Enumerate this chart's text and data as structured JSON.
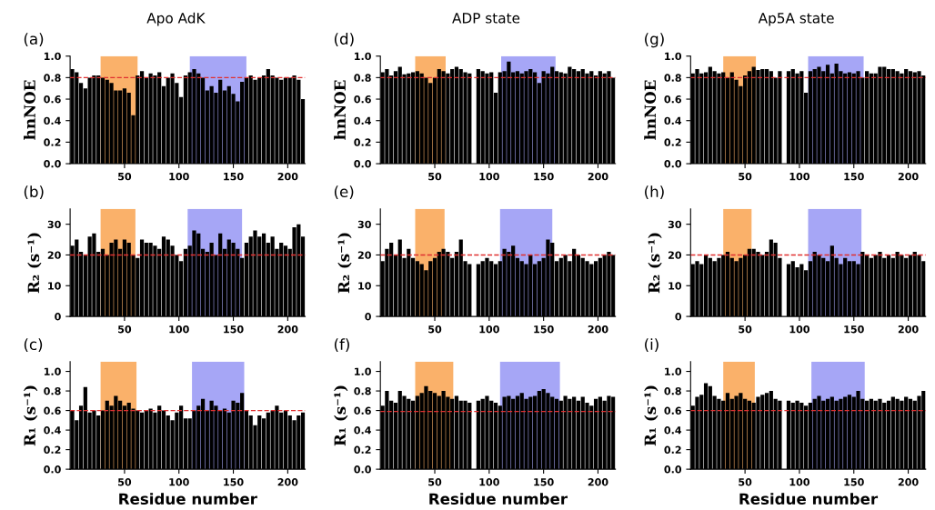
{
  "chart_data": [
    {
      "type": "bar",
      "title": "Apo AdK",
      "annotations": [
        "(a)"
      ],
      "ylabel": "hnNOE",
      "x": [
        2,
        6,
        10,
        14,
        18,
        22,
        26,
        30,
        34,
        38,
        42,
        46,
        50,
        54,
        58,
        62,
        66,
        70,
        74,
        78,
        82,
        86,
        90,
        94,
        98,
        102,
        106,
        110,
        114,
        118,
        122,
        126,
        130,
        134,
        138,
        142,
        146,
        150,
        154,
        158,
        162,
        166,
        170,
        174,
        178,
        182,
        186,
        190,
        194,
        198,
        202,
        206,
        210,
        214
      ],
      "color": "#000000",
      "values": [
        0.88,
        0.85,
        0.75,
        0.7,
        0.8,
        0.82,
        0.82,
        0.8,
        0.78,
        0.75,
        0.68,
        0.68,
        0.7,
        0.66,
        0.45,
        0.82,
        0.86,
        0.8,
        0.84,
        0.82,
        0.85,
        0.72,
        0.8,
        0.84,
        0.75,
        0.62,
        0.82,
        0.85,
        0.88,
        0.84,
        0.8,
        0.68,
        0.72,
        0.66,
        0.78,
        0.68,
        0.72,
        0.65,
        0.58,
        0.76,
        0.8,
        0.82,
        0.78,
        0.8,
        0.82,
        0.88,
        0.82,
        0.8,
        0.78,
        0.8,
        0.8,
        0.82,
        0.78,
        0.6
      ],
      "xlim": [
        0,
        216
      ],
      "xticks": [
        50,
        100,
        150,
        200
      ],
      "ylim": [
        0,
        1.0
      ],
      "yticks": [
        {
          "value": 0,
          "label": "0.0"
        },
        {
          "value": 0.2,
          "label": "0.2"
        },
        {
          "value": 0.4,
          "label": "0.4"
        },
        {
          "value": 0.6,
          "label": "0.6"
        },
        {
          "value": 0.8,
          "label": "0.8"
        },
        {
          "value": 1.0,
          "label": "1.0"
        }
      ],
      "ref_lines": [
        {
          "axis": "y",
          "value": 0.8,
          "color": "#e03030",
          "line_style": "dashed"
        }
      ],
      "bands": [
        {
          "axis": "x",
          "from": 28,
          "to": 62,
          "color": "#f9a95a"
        },
        {
          "axis": "x",
          "from": 110,
          "to": 162,
          "color": "#9c9cf5"
        }
      ]
    },
    {
      "type": "bar",
      "title": "ADP state",
      "annotations": [
        "(d)"
      ],
      "ylabel": "hnNOE",
      "x": [
        2,
        6,
        10,
        14,
        18,
        22,
        26,
        30,
        34,
        38,
        42,
        46,
        50,
        54,
        58,
        62,
        66,
        70,
        74,
        78,
        82,
        86,
        90,
        94,
        98,
        102,
        106,
        110,
        114,
        118,
        122,
        126,
        130,
        134,
        138,
        142,
        146,
        150,
        154,
        158,
        162,
        166,
        170,
        174,
        178,
        182,
        186,
        190,
        194,
        198,
        202,
        206,
        210,
        214
      ],
      "color": "#000000",
      "values": [
        0.85,
        0.88,
        0.82,
        0.86,
        0.9,
        0.83,
        0.84,
        0.85,
        0.86,
        0.84,
        0.8,
        0.75,
        0.8,
        0.88,
        0.86,
        0.84,
        0.88,
        0.9,
        0.88,
        0.85,
        0.84,
        null,
        0.88,
        0.86,
        0.84,
        0.85,
        0.66,
        0.85,
        0.86,
        0.95,
        0.85,
        0.86,
        0.84,
        0.86,
        0.88,
        0.85,
        0.75,
        0.86,
        0.84,
        0.9,
        0.86,
        0.85,
        0.84,
        0.9,
        0.88,
        0.86,
        0.88,
        0.84,
        0.86,
        0.82,
        0.86,
        0.84,
        0.86,
        0.8
      ],
      "xlim": [
        0,
        216
      ],
      "xticks": [
        50,
        100,
        150,
        200
      ],
      "ylim": [
        0,
        1.0
      ],
      "yticks": [
        {
          "value": 0,
          "label": "0.0"
        },
        {
          "value": 0.2,
          "label": "0.2"
        },
        {
          "value": 0.4,
          "label": "0.4"
        },
        {
          "value": 0.6,
          "label": "0.6"
        },
        {
          "value": 0.8,
          "label": "0.8"
        },
        {
          "value": 1.0,
          "label": "1.0"
        }
      ],
      "ref_lines": [
        {
          "axis": "y",
          "value": 0.8,
          "color": "#e03030",
          "line_style": "dashed"
        }
      ],
      "bands": [
        {
          "axis": "x",
          "from": 32,
          "to": 60,
          "color": "#f9a95a"
        },
        {
          "axis": "x",
          "from": 111,
          "to": 161,
          "color": "#9c9cf5"
        }
      ]
    },
    {
      "type": "bar",
      "title": "Ap5A state",
      "annotations": [
        "(g)"
      ],
      "ylabel": "hnNOE",
      "x": [
        2,
        6,
        10,
        14,
        18,
        22,
        26,
        30,
        34,
        38,
        42,
        46,
        50,
        54,
        58,
        62,
        66,
        70,
        74,
        78,
        82,
        86,
        90,
        94,
        98,
        102,
        106,
        110,
        114,
        118,
        122,
        126,
        130,
        134,
        138,
        142,
        146,
        150,
        154,
        158,
        162,
        166,
        170,
        174,
        178,
        182,
        186,
        190,
        194,
        198,
        202,
        206,
        210,
        214
      ],
      "color": "#000000",
      "values": [
        0.84,
        0.88,
        0.84,
        0.85,
        0.9,
        0.86,
        0.84,
        0.85,
        0.8,
        0.85,
        0.78,
        0.72,
        0.82,
        0.86,
        0.9,
        0.87,
        0.88,
        0.88,
        0.86,
        0.8,
        0.86,
        null,
        0.86,
        0.88,
        0.84,
        0.86,
        0.66,
        0.86,
        0.88,
        0.9,
        0.86,
        0.92,
        0.84,
        0.93,
        0.86,
        0.84,
        0.85,
        0.84,
        0.86,
        0.8,
        0.86,
        0.84,
        0.84,
        0.9,
        0.9,
        0.88,
        0.88,
        0.86,
        0.84,
        0.88,
        0.86,
        0.85,
        0.86,
        0.82
      ],
      "xlim": [
        0,
        216
      ],
      "xticks": [
        50,
        100,
        150,
        200
      ],
      "ylim": [
        0,
        1.0
      ],
      "yticks": [
        {
          "value": 0,
          "label": "0.0"
        },
        {
          "value": 0.2,
          "label": "0.2"
        },
        {
          "value": 0.4,
          "label": "0.4"
        },
        {
          "value": 0.6,
          "label": "0.6"
        },
        {
          "value": 0.8,
          "label": "0.8"
        },
        {
          "value": 1.0,
          "label": "1.0"
        }
      ],
      "ref_lines": [
        {
          "axis": "y",
          "value": 0.8,
          "color": "#e03030",
          "line_style": "dashed"
        }
      ],
      "bands": [
        {
          "axis": "x",
          "from": 30,
          "to": 60,
          "color": "#f9a95a"
        },
        {
          "axis": "x",
          "from": 108,
          "to": 159,
          "color": "#9c9cf5"
        }
      ]
    },
    {
      "type": "bar",
      "annotations": [
        "(b)"
      ],
      "ylabel": "R₂ (s⁻¹)",
      "x": [
        2,
        6,
        10,
        14,
        18,
        22,
        26,
        30,
        34,
        38,
        42,
        46,
        50,
        54,
        58,
        62,
        66,
        70,
        74,
        78,
        82,
        86,
        90,
        94,
        98,
        102,
        106,
        110,
        114,
        118,
        122,
        126,
        130,
        134,
        138,
        142,
        146,
        150,
        154,
        158,
        162,
        166,
        170,
        174,
        178,
        182,
        186,
        190,
        194,
        198,
        202,
        206,
        210,
        214
      ],
      "color": "#000000",
      "values": [
        23,
        25,
        21,
        20,
        26,
        27,
        21,
        22,
        20,
        24,
        25,
        22,
        25,
        24,
        20,
        19,
        25,
        24,
        24,
        23,
        22,
        26,
        25,
        23,
        20,
        18,
        22,
        23,
        28,
        27,
        22,
        21,
        24,
        20,
        27,
        22,
        25,
        24,
        22,
        19,
        24,
        26,
        28,
        26,
        27,
        24,
        26,
        22,
        24,
        23,
        22,
        29,
        30,
        26
      ],
      "xlim": [
        0,
        216
      ],
      "xticks": [
        50,
        100,
        150,
        200
      ],
      "ylim": [
        0,
        35
      ],
      "yticks": [
        0,
        10,
        20,
        30
      ],
      "ref_lines": [
        {
          "axis": "y",
          "value": 20,
          "color": "#e03030",
          "line_style": "dashed"
        }
      ],
      "bands": [
        {
          "axis": "x",
          "from": 28,
          "to": 60,
          "color": "#f9a95a"
        },
        {
          "axis": "x",
          "from": 108,
          "to": 158,
          "color": "#9c9cf5"
        }
      ]
    },
    {
      "type": "bar",
      "annotations": [
        "(e)"
      ],
      "ylabel": "R₂ (s⁻¹)",
      "x": [
        2,
        6,
        10,
        14,
        18,
        22,
        26,
        30,
        34,
        38,
        42,
        46,
        50,
        54,
        58,
        62,
        66,
        70,
        74,
        78,
        82,
        86,
        90,
        94,
        98,
        102,
        106,
        110,
        114,
        118,
        122,
        126,
        130,
        134,
        138,
        142,
        146,
        150,
        154,
        158,
        162,
        166,
        170,
        174,
        178,
        182,
        186,
        190,
        194,
        198,
        202,
        206,
        210,
        214
      ],
      "color": "#000000",
      "values": [
        18,
        22,
        24,
        20,
        25,
        19,
        22,
        19,
        18,
        17,
        15,
        18,
        19,
        21,
        22,
        21,
        19,
        21,
        25,
        18,
        17,
        null,
        17,
        18,
        19,
        18,
        17,
        18,
        22,
        21,
        23,
        19,
        18,
        17,
        20,
        17,
        18,
        19,
        25,
        24,
        18,
        19,
        20,
        18,
        22,
        20,
        19,
        18,
        17,
        18,
        19,
        20,
        21,
        20
      ],
      "xlim": [
        0,
        216
      ],
      "xticks": [
        50,
        100,
        150,
        200
      ],
      "ylim": [
        0,
        35
      ],
      "yticks": [
        0,
        10,
        20,
        30
      ],
      "ref_lines": [
        {
          "axis": "y",
          "value": 20,
          "color": "#e03030",
          "line_style": "dashed"
        }
      ],
      "bands": [
        {
          "axis": "x",
          "from": 32,
          "to": 59,
          "color": "#f9a95a"
        },
        {
          "axis": "x",
          "from": 110,
          "to": 158,
          "color": "#9c9cf5"
        }
      ]
    },
    {
      "type": "bar",
      "annotations": [
        "(h)"
      ],
      "ylabel": "R₂ (s⁻¹)",
      "x": [
        2,
        6,
        10,
        14,
        18,
        22,
        26,
        30,
        34,
        38,
        42,
        46,
        50,
        54,
        58,
        62,
        66,
        70,
        74,
        78,
        82,
        86,
        90,
        94,
        98,
        102,
        106,
        110,
        114,
        118,
        122,
        126,
        130,
        134,
        138,
        142,
        146,
        150,
        154,
        158,
        162,
        166,
        170,
        174,
        178,
        182,
        186,
        190,
        194,
        198,
        202,
        206,
        210,
        214
      ],
      "color": "#000000",
      "values": [
        17,
        18,
        17,
        20,
        19,
        18,
        19,
        20,
        21,
        19,
        18,
        19,
        20,
        22,
        22,
        21,
        20,
        21,
        25,
        24,
        19,
        null,
        17,
        18,
        16,
        17,
        15,
        18,
        21,
        20,
        19,
        18,
        23,
        19,
        17,
        19,
        18,
        18,
        17,
        21,
        20,
        19,
        20,
        21,
        19,
        20,
        19,
        21,
        20,
        19,
        20,
        21,
        20,
        18
      ],
      "xlim": [
        0,
        216
      ],
      "xticks": [
        50,
        100,
        150,
        200
      ],
      "ylim": [
        0,
        35
      ],
      "yticks": [
        0,
        10,
        20,
        30
      ],
      "ref_lines": [
        {
          "axis": "y",
          "value": 20,
          "color": "#e03030",
          "line_style": "dashed"
        }
      ],
      "bands": [
        {
          "axis": "x",
          "from": 30,
          "to": 56,
          "color": "#f9a95a"
        },
        {
          "axis": "x",
          "from": 108,
          "to": 157,
          "color": "#9c9cf5"
        }
      ]
    },
    {
      "type": "bar",
      "annotations": [
        "(c)"
      ],
      "ylabel": "R₁ (s⁻¹)",
      "xlabel": "Residue number",
      "x": [
        2,
        6,
        10,
        14,
        18,
        22,
        26,
        30,
        34,
        38,
        42,
        46,
        50,
        54,
        58,
        62,
        66,
        70,
        74,
        78,
        82,
        86,
        90,
        94,
        98,
        102,
        106,
        110,
        114,
        118,
        122,
        126,
        130,
        134,
        138,
        142,
        146,
        150,
        154,
        158,
        162,
        166,
        170,
        174,
        178,
        182,
        186,
        190,
        194,
        198,
        202,
        206,
        210,
        214
      ],
      "color": "#000000",
      "values": [
        0.6,
        0.5,
        0.65,
        0.84,
        0.58,
        0.6,
        0.55,
        0.6,
        0.7,
        0.65,
        0.75,
        0.7,
        0.65,
        0.68,
        0.62,
        0.6,
        0.58,
        0.6,
        0.62,
        0.58,
        0.65,
        0.6,
        0.55,
        0.5,
        0.58,
        0.65,
        0.52,
        0.52,
        0.6,
        0.65,
        0.72,
        0.6,
        0.7,
        0.65,
        0.6,
        0.62,
        0.58,
        0.7,
        0.68,
        0.78,
        0.6,
        0.55,
        0.45,
        0.55,
        0.52,
        0.58,
        0.6,
        0.65,
        0.58,
        0.6,
        0.55,
        0.5,
        0.55,
        0.58
      ],
      "xlim": [
        0,
        216
      ],
      "xticks": [
        50,
        100,
        150,
        200
      ],
      "ylim": [
        0,
        1.1
      ],
      "yticks": [
        {
          "value": 0,
          "label": "0.0"
        },
        {
          "value": 0.2,
          "label": "0.2"
        },
        {
          "value": 0.4,
          "label": "0.4"
        },
        {
          "value": 0.6,
          "label": "0.6"
        },
        {
          "value": 0.8,
          "label": "0.8"
        },
        {
          "value": 1.0,
          "label": "1.0"
        }
      ],
      "ref_lines": [
        {
          "axis": "y",
          "value": 0.6,
          "color": "#e03030",
          "line_style": "dashed"
        }
      ],
      "bands": [
        {
          "axis": "x",
          "from": 28,
          "to": 61,
          "color": "#f9a95a"
        },
        {
          "axis": "x",
          "from": 112,
          "to": 160,
          "color": "#9c9cf5"
        }
      ]
    },
    {
      "type": "bar",
      "annotations": [
        "(f)"
      ],
      "ylabel": "R₁ (s⁻¹)",
      "xlabel": "Residue number",
      "x": [
        2,
        6,
        10,
        14,
        18,
        22,
        26,
        30,
        34,
        38,
        42,
        46,
        50,
        54,
        58,
        62,
        66,
        70,
        74,
        78,
        82,
        86,
        90,
        94,
        98,
        102,
        106,
        110,
        114,
        118,
        122,
        126,
        130,
        134,
        138,
        142,
        146,
        150,
        154,
        158,
        162,
        166,
        170,
        174,
        178,
        182,
        186,
        190,
        194,
        198,
        202,
        206,
        210,
        214
      ],
      "color": "#000000",
      "values": [
        0.65,
        0.8,
        0.7,
        0.68,
        0.8,
        0.75,
        0.72,
        0.7,
        0.75,
        0.78,
        0.85,
        0.8,
        0.78,
        0.75,
        0.8,
        0.74,
        0.72,
        0.75,
        0.7,
        0.7,
        0.68,
        null,
        0.7,
        0.72,
        0.75,
        0.7,
        0.68,
        0.65,
        0.74,
        0.75,
        0.72,
        0.75,
        0.78,
        0.72,
        0.74,
        0.75,
        0.8,
        0.82,
        0.78,
        0.74,
        0.72,
        0.7,
        0.75,
        0.72,
        0.74,
        0.7,
        0.74,
        0.68,
        0.65,
        0.72,
        0.74,
        0.7,
        0.75,
        0.74
      ],
      "xlim": [
        0,
        216
      ],
      "xticks": [
        50,
        100,
        150,
        200
      ],
      "ylim": [
        0,
        1.1
      ],
      "yticks": [
        {
          "value": 0,
          "label": "0.0"
        },
        {
          "value": 0.2,
          "label": "0.2"
        },
        {
          "value": 0.4,
          "label": "0.4"
        },
        {
          "value": 0.6,
          "label": "0.6"
        },
        {
          "value": 0.8,
          "label": "0.8"
        },
        {
          "value": 1.0,
          "label": "1.0"
        }
      ],
      "ref_lines": [
        {
          "axis": "y",
          "value": 0.59,
          "color": "#e03030",
          "line_style": "dashed"
        }
      ],
      "bands": [
        {
          "axis": "x",
          "from": 32,
          "to": 67,
          "color": "#f9a95a"
        },
        {
          "axis": "x",
          "from": 110,
          "to": 165,
          "color": "#9c9cf5"
        }
      ]
    },
    {
      "type": "bar",
      "annotations": [
        "(i)"
      ],
      "ylabel": "R₁ (s⁻¹)",
      "xlabel": "Residue number",
      "x": [
        2,
        6,
        10,
        14,
        18,
        22,
        26,
        30,
        34,
        38,
        42,
        46,
        50,
        54,
        58,
        62,
        66,
        70,
        74,
        78,
        82,
        86,
        90,
        94,
        98,
        102,
        106,
        110,
        114,
        118,
        122,
        126,
        130,
        134,
        138,
        142,
        146,
        150,
        154,
        158,
        162,
        166,
        170,
        174,
        178,
        182,
        186,
        190,
        194,
        198,
        202,
        206,
        210,
        214
      ],
      "color": "#000000",
      "values": [
        0.65,
        0.74,
        0.76,
        0.88,
        0.85,
        0.75,
        0.72,
        0.7,
        0.78,
        0.72,
        0.75,
        0.78,
        0.72,
        0.7,
        0.68,
        0.74,
        0.76,
        0.78,
        0.8,
        0.72,
        0.7,
        null,
        0.7,
        0.68,
        0.7,
        0.68,
        0.65,
        0.68,
        0.72,
        0.75,
        0.7,
        0.72,
        0.74,
        0.7,
        0.72,
        0.74,
        0.76,
        0.74,
        0.8,
        0.72,
        0.7,
        0.72,
        0.7,
        0.72,
        0.68,
        0.7,
        0.74,
        0.72,
        0.7,
        0.74,
        0.72,
        0.7,
        0.75,
        0.8
      ],
      "xlim": [
        0,
        216
      ],
      "xticks": [
        50,
        100,
        150,
        200
      ],
      "ylim": [
        0,
        1.1
      ],
      "yticks": [
        {
          "value": 0,
          "label": "0.0"
        },
        {
          "value": 0.2,
          "label": "0.2"
        },
        {
          "value": 0.4,
          "label": "0.4"
        },
        {
          "value": 0.6,
          "label": "0.6"
        },
        {
          "value": 0.8,
          "label": "0.8"
        },
        {
          "value": 1.0,
          "label": "1.0"
        }
      ],
      "ref_lines": [
        {
          "axis": "y",
          "value": 0.6,
          "color": "#e03030",
          "line_style": "dashed"
        }
      ],
      "bands": [
        {
          "axis": "x",
          "from": 30,
          "to": 59,
          "color": "#f9a95a"
        },
        {
          "axis": "x",
          "from": 111,
          "to": 160,
          "color": "#9c9cf5"
        }
      ]
    }
  ]
}
